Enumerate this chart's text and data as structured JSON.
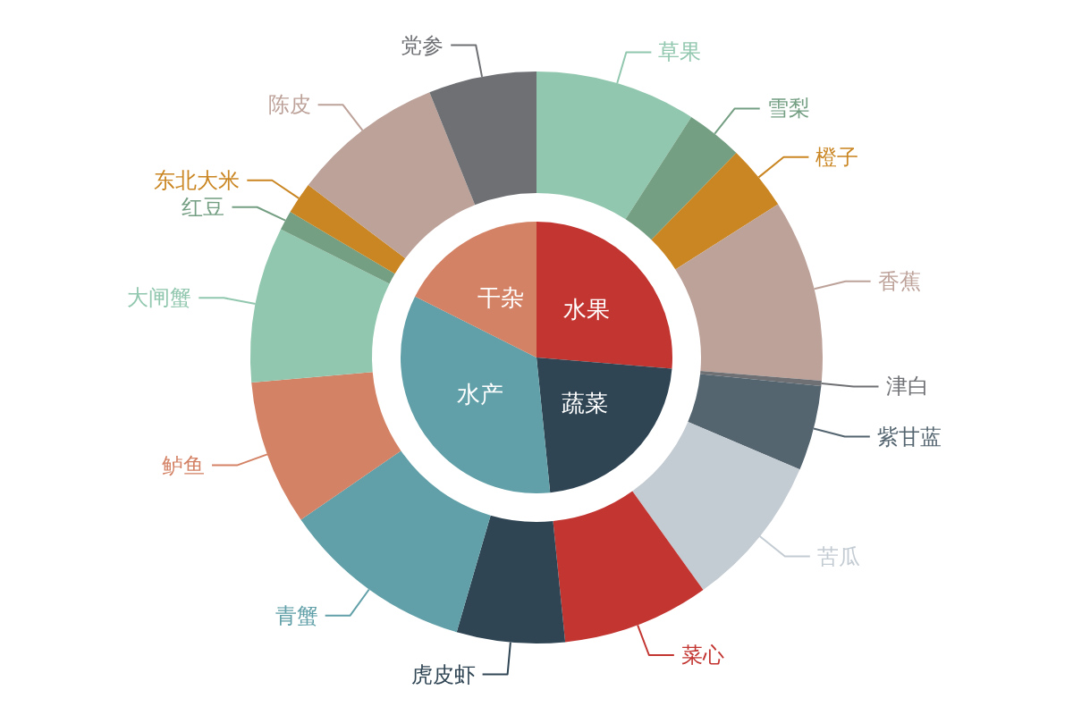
{
  "chart_data": [
    {
      "type": "pie",
      "categories": [
        "水果",
        "蔬菜",
        "水产",
        "干杂"
      ],
      "values": [
        26.3,
        22.1,
        34,
        17.6
      ],
      "colors": [
        "#c23531",
        "#2f4554",
        "#61a0a8",
        "#d48265"
      ]
    },
    {
      "type": "donut",
      "categories": [
        "草果",
        "雪梨",
        "橙子",
        "香蕉",
        "津白",
        "紫甘蓝",
        "苦瓜",
        "菜心",
        "虎皮虾",
        "青蟹",
        "鲈鱼",
        "大闸蟹",
        "红豆",
        "东北大米",
        "陈皮",
        "党参"
      ],
      "values": [
        9.1,
        3.2,
        3.7,
        10.3,
        0.3,
        4.8,
        8.7,
        8.3,
        6.1,
        10.9,
        8.2,
        8.8,
        1.1,
        1.8,
        8.6,
        6.1
      ],
      "colors": [
        "#91c7ae",
        "#749f83",
        "#ca8622",
        "#bda29a",
        "#6e7074",
        "#546570",
        "#c4ccd3",
        "#c23531",
        "#2f4554",
        "#61a0a8",
        "#d48265",
        "#91c7ae",
        "#749f83",
        "#ca8622",
        "#bda29a",
        "#6e7074"
      ]
    }
  ]
}
